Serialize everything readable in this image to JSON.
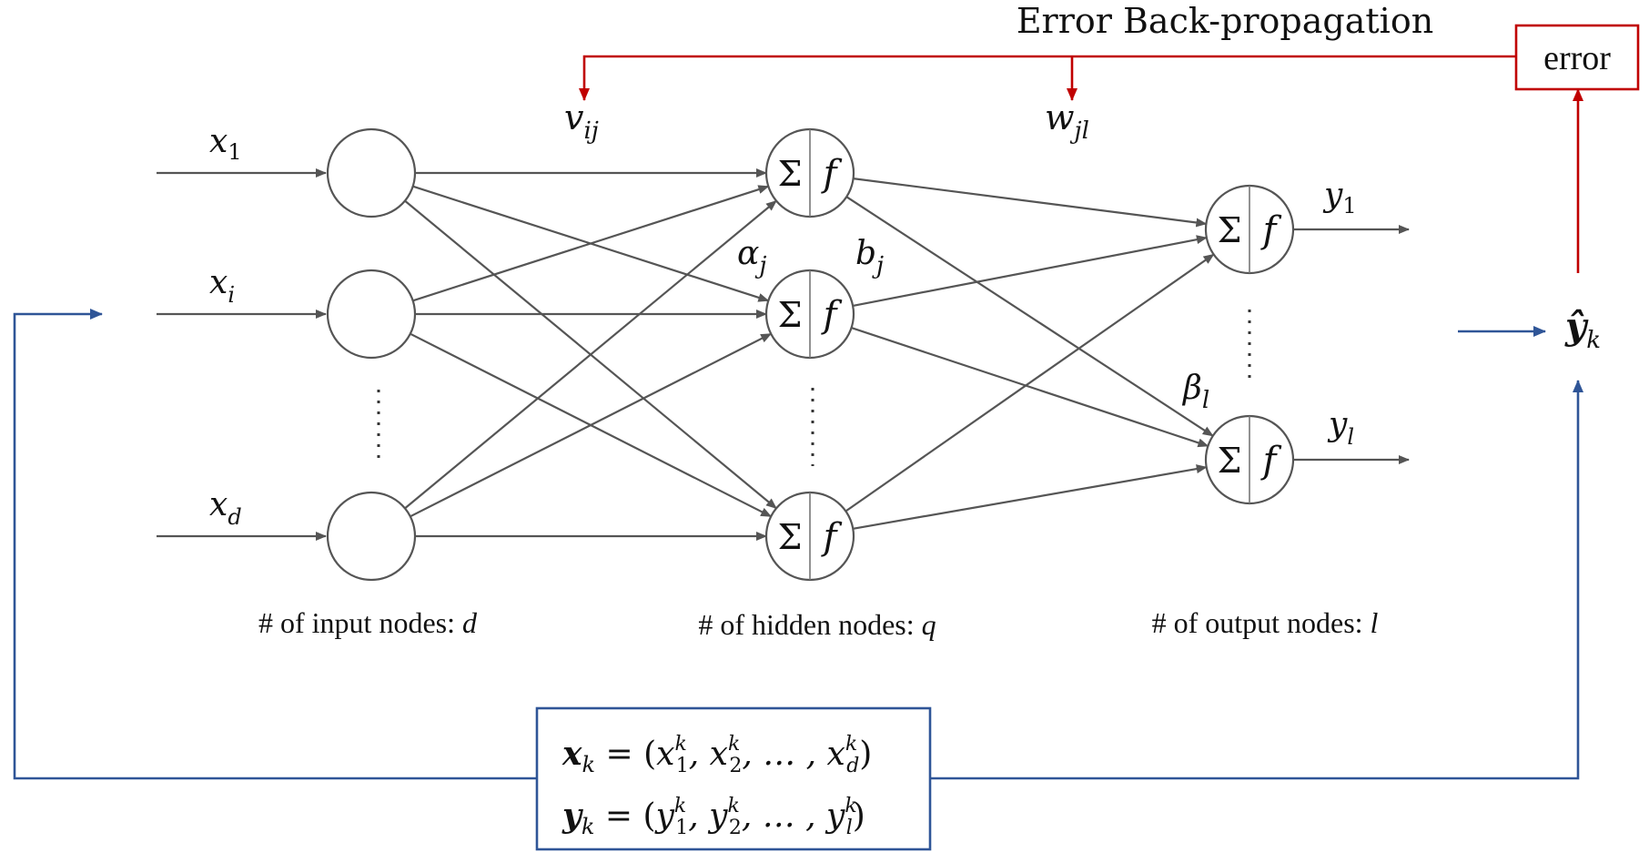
{
  "title": "Error Back-propagation",
  "error_box": "error",
  "inputs": [
    {
      "base": "x",
      "sub": "1"
    },
    {
      "base": "x",
      "sub": "i"
    },
    {
      "base": "x",
      "sub": "d"
    }
  ],
  "outputs": [
    {
      "base": "y",
      "sub": "1"
    },
    {
      "base": "y",
      "sub": "l"
    }
  ],
  "weights": {
    "v": {
      "base": "v",
      "sub": "ij"
    },
    "w": {
      "base": "w",
      "sub": "jl"
    }
  },
  "params": {
    "alpha": {
      "base": "α",
      "sub": "j"
    },
    "b": {
      "base": "b",
      "sub": "j"
    },
    "beta": {
      "base": "β",
      "sub": "l"
    }
  },
  "neuron": {
    "sum": "Σ",
    "f": "f"
  },
  "yhat": {
    "base": "ŷ",
    "sub": "k"
  },
  "captions": {
    "input": {
      "text": "# of input nodes: ",
      "var": "d"
    },
    "hidden": {
      "text": "# of hidden nodes: ",
      "var": "q"
    },
    "output": {
      "text": "# of output nodes: ",
      "var": "l"
    }
  },
  "sample": {
    "x": {
      "lhs": "x",
      "lhs_sub": "k",
      "eq": " = (",
      "t1": "x",
      "s1": "1",
      "t2": ", x",
      "s2": "2",
      "mid": ", … , x",
      "s3": "d",
      "sup": "k",
      "close": ")"
    },
    "y": {
      "lhs": "y",
      "lhs_sub": "k",
      "eq": " = (",
      "t1": "y",
      "s1": "1",
      "t2": ", y",
      "s2": "2",
      "mid": ", … , y",
      "s3": "l",
      "sup": "k",
      "close": ")"
    }
  },
  "colors": {
    "gray": "#555555",
    "red": "#c00000",
    "blue": "#2f5597"
  }
}
